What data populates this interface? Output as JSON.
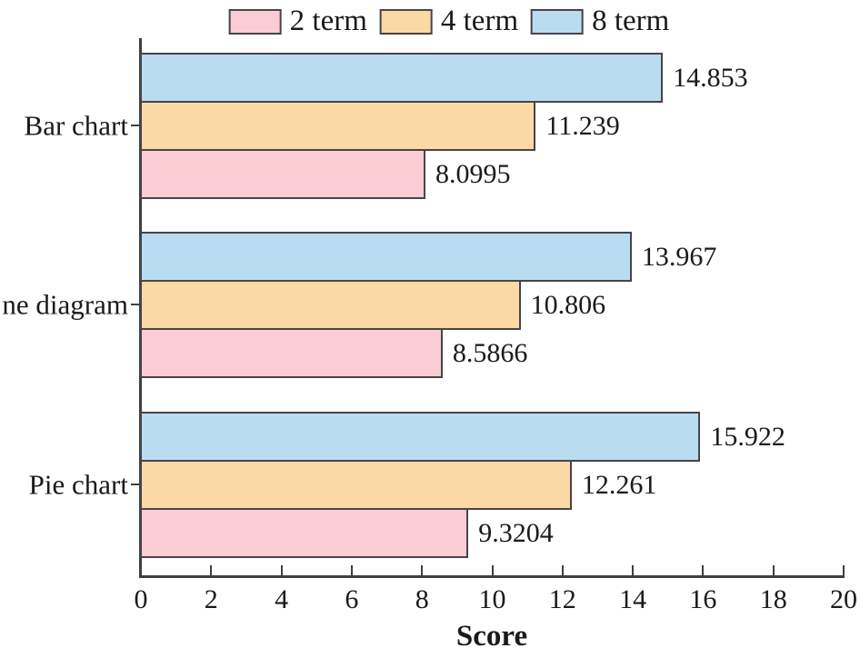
{
  "chart_data": {
    "type": "bar",
    "orientation": "horizontal",
    "title": "",
    "xlabel": "Score",
    "ylabel": "",
    "xlim": [
      0,
      20
    ],
    "xticks": [
      0,
      2,
      4,
      6,
      8,
      10,
      12,
      14,
      16,
      18,
      20
    ],
    "grid": false,
    "legend_position": "top",
    "categories": [
      "Bar chart",
      "ne diagram",
      "Pie chart"
    ],
    "series": [
      {
        "name": "2 term",
        "color": "#F9CDD3",
        "values": [
          8.0995,
          8.5866,
          9.3204
        ]
      },
      {
        "name": "4 term",
        "color": "#FBD9A4",
        "values": [
          11.239,
          10.806,
          12.261
        ]
      },
      {
        "name": "8 term",
        "color": "#BADCF1",
        "values": [
          14.853,
          13.967,
          15.922
        ]
      }
    ],
    "bar_order_top_to_bottom": [
      "8 term",
      "4 term",
      "2 term"
    ],
    "colors": {
      "bar_border": "#47444A",
      "axis": "#3F3F3F",
      "text": "#1A1A1A",
      "background": "#FFFFFF"
    }
  }
}
